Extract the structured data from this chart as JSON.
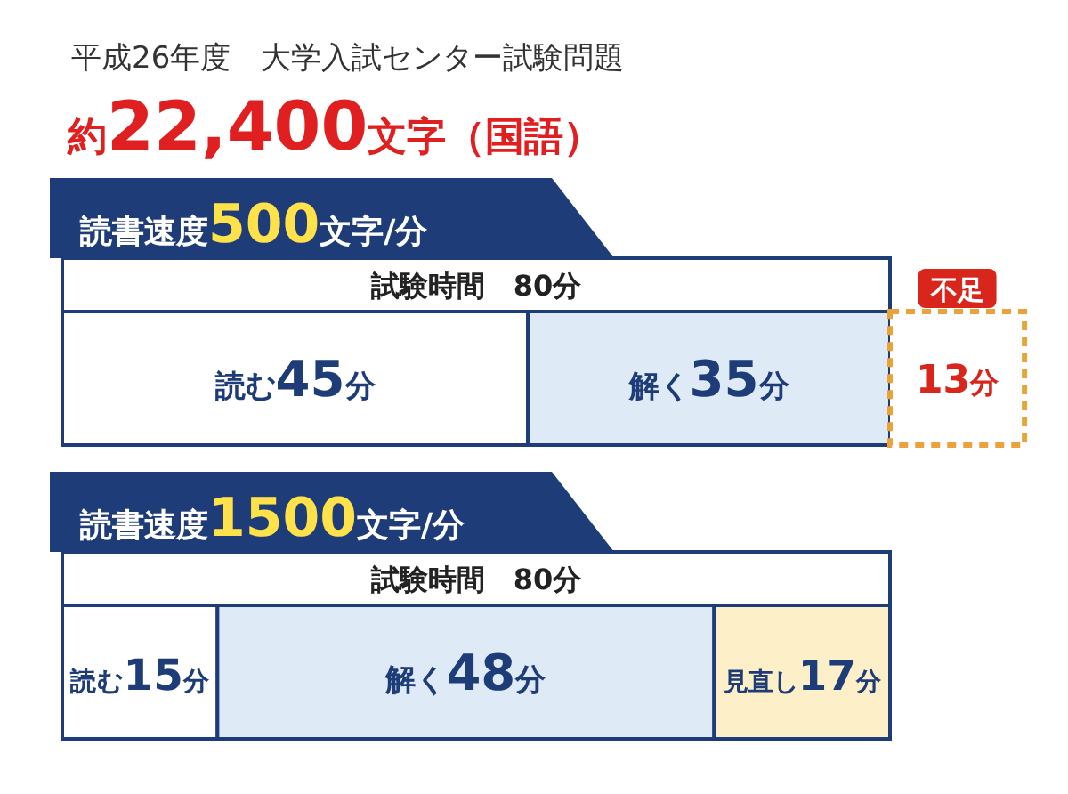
{
  "chart_data": [
    {
      "type": "bar",
      "orientation": "horizontal",
      "stacked": true,
      "title": "平成26年度　大学入試センター試験問題",
      "subtitle": "約22,400文字（国語）",
      "categories": [
        "読書速度500文字/分"
      ],
      "annotations": [
        "試験時間　80分"
      ],
      "series": [
        {
          "name": "読む",
          "color": "#ffffff",
          "values": [
            45
          ],
          "value_labels": [
            "45分"
          ]
        },
        {
          "name": "解く",
          "color": "#deeaf6",
          "values": [
            35
          ],
          "value_labels": [
            "35分"
          ]
        },
        {
          "name": "不足",
          "color": "#e8a33d",
          "values": [
            13
          ],
          "value_labels": [
            "13分"
          ],
          "line_style": "dashed"
        }
      ]
    },
    {
      "type": "bar",
      "orientation": "horizontal",
      "stacked": true,
      "categories": [
        "読書速度1500文字/分"
      ],
      "annotations": [
        "試験時間　80分"
      ],
      "series": [
        {
          "name": "読む",
          "color": "#ffffff",
          "values": [
            15
          ],
          "value_labels": [
            "15分"
          ]
        },
        {
          "name": "解く",
          "color": "#deeaf6",
          "values": [
            48
          ],
          "value_labels": [
            "48分"
          ]
        },
        {
          "name": "見直し",
          "color": "#fdf0c8",
          "values": [
            17
          ],
          "value_labels": [
            "17分"
          ]
        }
      ]
    }
  ]
}
